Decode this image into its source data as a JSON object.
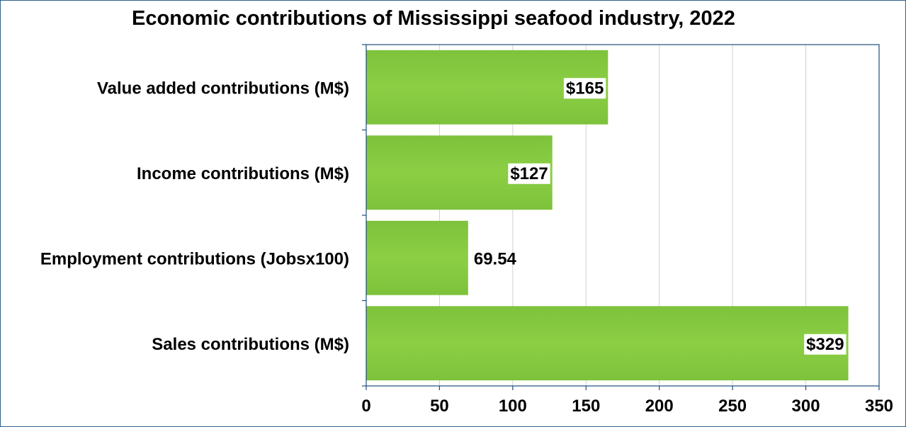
{
  "chart_data": {
    "type": "bar",
    "orientation": "horizontal",
    "title": "Economic contributions of Mississippi seafood industry, 2022",
    "categories": [
      "Value added contributions (M$)",
      "Income contributions (M$)",
      "Employment contributions (Jobsx100)",
      "Sales contributions (M$)"
    ],
    "values": [
      165,
      127,
      69.54,
      329
    ],
    "data_labels": [
      "$165",
      "$127",
      "69.54",
      "$329"
    ],
    "data_label_inside": [
      true,
      true,
      false,
      true
    ],
    "xlim": [
      0,
      350
    ],
    "xticks": [
      0,
      50,
      100,
      150,
      200,
      250,
      300,
      350
    ],
    "xtick_labels": [
      "0",
      "50",
      "100",
      "150",
      "200",
      "250",
      "300",
      "350"
    ],
    "grid": "vertical",
    "legend": "none",
    "colors": {
      "bar": "#7dc23b",
      "bar_light": "#8ccf45",
      "gridline": "#d0d0d0",
      "axis": "#1f4e79",
      "frame": "#2f5f8f"
    }
  }
}
